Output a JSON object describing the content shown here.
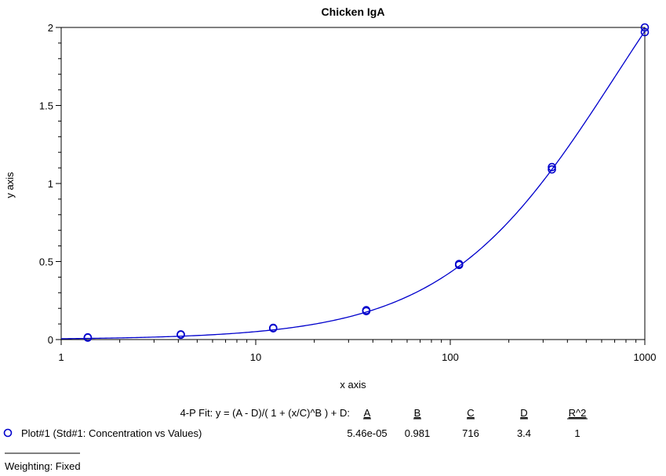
{
  "chart_data": {
    "type": "scatter",
    "title": "Chicken IgA",
    "xlabel": "x axis",
    "ylabel": "y axis",
    "xscale": "log",
    "xlim": [
      1,
      1000
    ],
    "ylim": [
      0,
      2
    ],
    "x_ticks": [
      "1",
      "10",
      "100",
      "1000"
    ],
    "y_ticks": [
      "0",
      "0.5",
      "1",
      "1.5",
      "2"
    ],
    "grid": false,
    "series": [
      {
        "name": "Plot#1 (Std#1: Concentration vs Values)",
        "color": "#0000cc",
        "marker": "circle",
        "x": [
          1.37,
          1.37,
          4.12,
          4.12,
          12.3,
          12.3,
          37.0,
          37.0,
          111,
          111,
          333,
          333,
          1000,
          1000
        ],
        "y": [
          0.012,
          0.014,
          0.031,
          0.033,
          0.072,
          0.075,
          0.182,
          0.188,
          0.478,
          0.484,
          1.09,
          1.105,
          1.97,
          2.0
        ]
      }
    ],
    "fit": {
      "label": "4-P Fit: y = (A - D)/( 1 + (x/C)^B ) + D:",
      "headers": [
        "A",
        "B",
        "C",
        "D",
        "R^2"
      ],
      "values": [
        "5.46e-05",
        "0.981",
        "716",
        "3.4",
        "1"
      ],
      "params": {
        "A": 5.46e-05,
        "B": 0.981,
        "C": 716,
        "D": 3.4
      }
    },
    "weighting": "Weighting: Fixed"
  }
}
